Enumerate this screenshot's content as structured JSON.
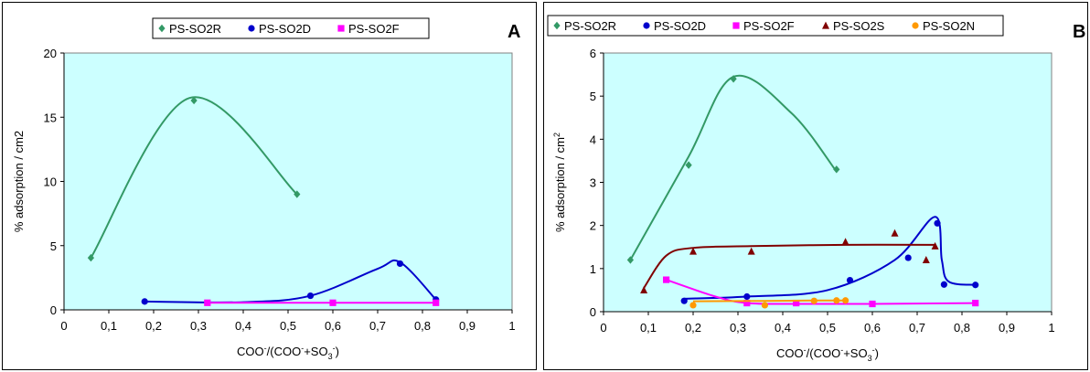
{
  "chart_data": [
    {
      "type": "line",
      "panel_label": "A",
      "xlabel": {
        "main": "COO",
        "sup1": "-",
        "mid": "/(COO",
        "sup2": "-",
        "mid2": "+SO",
        "sub": "3",
        "sup3": "-",
        "end": ")"
      },
      "ylabel": "% adsorption / cm2",
      "xlim": [
        0,
        1
      ],
      "ylim": [
        0,
        20
      ],
      "xticks": [
        "0",
        "0,1",
        "0,2",
        "0,3",
        "0,4",
        "0,5",
        "0,6",
        "0,7",
        "0,8",
        "0,9",
        "1"
      ],
      "yticks": [
        "0",
        "5",
        "10",
        "15",
        "20"
      ],
      "plot_background": "#ccffff",
      "legend_position": "top-center",
      "grid": false,
      "series": [
        {
          "name": "PS-SO2R",
          "color": "#339966",
          "marker": "diamond",
          "points": [
            [
              0.06,
              4.05
            ],
            [
              0.29,
              16.3
            ],
            [
              0.52,
              9.0
            ]
          ],
          "curve": [
            [
              0.06,
              4.05
            ],
            [
              0.28,
              16.5
            ],
            [
              0.52,
              9.0
            ]
          ]
        },
        {
          "name": "PS-SO2D",
          "color": "#0000cc",
          "marker": "circle",
          "points": [
            [
              0.18,
              0.65
            ],
            [
              0.55,
              1.1
            ],
            [
              0.75,
              3.6
            ],
            [
              0.83,
              0.8
            ]
          ],
          "curve": [
            [
              0.18,
              0.65
            ],
            [
              0.4,
              0.6
            ],
            [
              0.55,
              1.1
            ],
            [
              0.7,
              3.2
            ],
            [
              0.75,
              3.7
            ],
            [
              0.83,
              0.8
            ]
          ]
        },
        {
          "name": "PS-SO2F",
          "color": "#ff00ff",
          "marker": "square",
          "points": [
            [
              0.32,
              0.55
            ],
            [
              0.6,
              0.55
            ],
            [
              0.83,
              0.55
            ]
          ],
          "curve": [
            [
              0.32,
              0.55
            ],
            [
              0.6,
              0.55
            ],
            [
              0.83,
              0.55
            ]
          ]
        }
      ]
    },
    {
      "type": "line",
      "panel_label": "B",
      "xlabel": {
        "main": "COO",
        "sup1": "-",
        "mid": "/(COO",
        "sup2": "-",
        "mid2": "+SO",
        "sub": "3",
        "sup3": "-",
        "end": ")"
      },
      "ylabel": "% adsorption / cm",
      "ylabel_sup": "2",
      "xlim": [
        0,
        1
      ],
      "ylim": [
        0,
        6
      ],
      "xticks": [
        "0",
        "0,1",
        "0,2",
        "0,3",
        "0,4",
        "0,5",
        "0,6",
        "0,7",
        "0,8",
        "0,9",
        "1"
      ],
      "yticks": [
        "0",
        "1",
        "2",
        "3",
        "4",
        "5",
        "6"
      ],
      "plot_background": "#ccffff",
      "legend_position": "top",
      "grid": false,
      "series": [
        {
          "name": "PS-SO2R",
          "color": "#339966",
          "marker": "diamond",
          "points": [
            [
              0.06,
              1.2
            ],
            [
              0.19,
              3.4
            ],
            [
              0.29,
              5.4
            ],
            [
              0.52,
              3.3
            ]
          ],
          "curve": [
            [
              0.06,
              1.2
            ],
            [
              0.19,
              3.6
            ],
            [
              0.29,
              5.45
            ],
            [
              0.42,
              4.6
            ],
            [
              0.52,
              3.25
            ]
          ]
        },
        {
          "name": "PS-SO2D",
          "color": "#0000cc",
          "marker": "circle",
          "points": [
            [
              0.18,
              0.25
            ],
            [
              0.32,
              0.35
            ],
            [
              0.55,
              0.73
            ],
            [
              0.68,
              1.25
            ],
            [
              0.745,
              2.05
            ],
            [
              0.76,
              0.63
            ],
            [
              0.83,
              0.62
            ]
          ],
          "curve": [
            [
              0.18,
              0.3
            ],
            [
              0.32,
              0.35
            ],
            [
              0.5,
              0.5
            ],
            [
              0.65,
              1.2
            ],
            [
              0.74,
              2.2
            ],
            [
              0.755,
              1.2
            ],
            [
              0.77,
              0.7
            ],
            [
              0.83,
              0.62
            ]
          ]
        },
        {
          "name": "PS-SO2F",
          "color": "#ff00ff",
          "marker": "square",
          "points": [
            [
              0.14,
              0.74
            ],
            [
              0.32,
              0.2
            ],
            [
              0.43,
              0.2
            ],
            [
              0.6,
              0.18
            ],
            [
              0.83,
              0.2
            ]
          ],
          "curve": [
            [
              0.14,
              0.74
            ],
            [
              0.25,
              0.35
            ],
            [
              0.32,
              0.2
            ],
            [
              0.43,
              0.18
            ],
            [
              0.6,
              0.18
            ],
            [
              0.83,
              0.2
            ]
          ]
        },
        {
          "name": "PS-SO2S",
          "color": "#800000",
          "marker": "triangle",
          "points": [
            [
              0.09,
              0.5
            ],
            [
              0.2,
              1.4
            ],
            [
              0.33,
              1.4
            ],
            [
              0.54,
              1.62
            ],
            [
              0.65,
              1.82
            ],
            [
              0.72,
              1.2
            ],
            [
              0.74,
              1.52
            ]
          ],
          "curve": [
            [
              0.09,
              0.55
            ],
            [
              0.14,
              1.3
            ],
            [
              0.2,
              1.48
            ],
            [
              0.33,
              1.52
            ],
            [
              0.54,
              1.55
            ],
            [
              0.74,
              1.55
            ]
          ]
        },
        {
          "name": "PS-SO2N",
          "color": "#ff9900",
          "marker": "circle",
          "points": [
            [
              0.2,
              0.15
            ],
            [
              0.36,
              0.15
            ],
            [
              0.47,
              0.25
            ],
            [
              0.52,
              0.26
            ],
            [
              0.54,
              0.26
            ]
          ],
          "curve": [
            [
              0.2,
              0.24
            ],
            [
              0.36,
              0.25
            ],
            [
              0.47,
              0.26
            ],
            [
              0.54,
              0.26
            ]
          ]
        }
      ]
    }
  ]
}
